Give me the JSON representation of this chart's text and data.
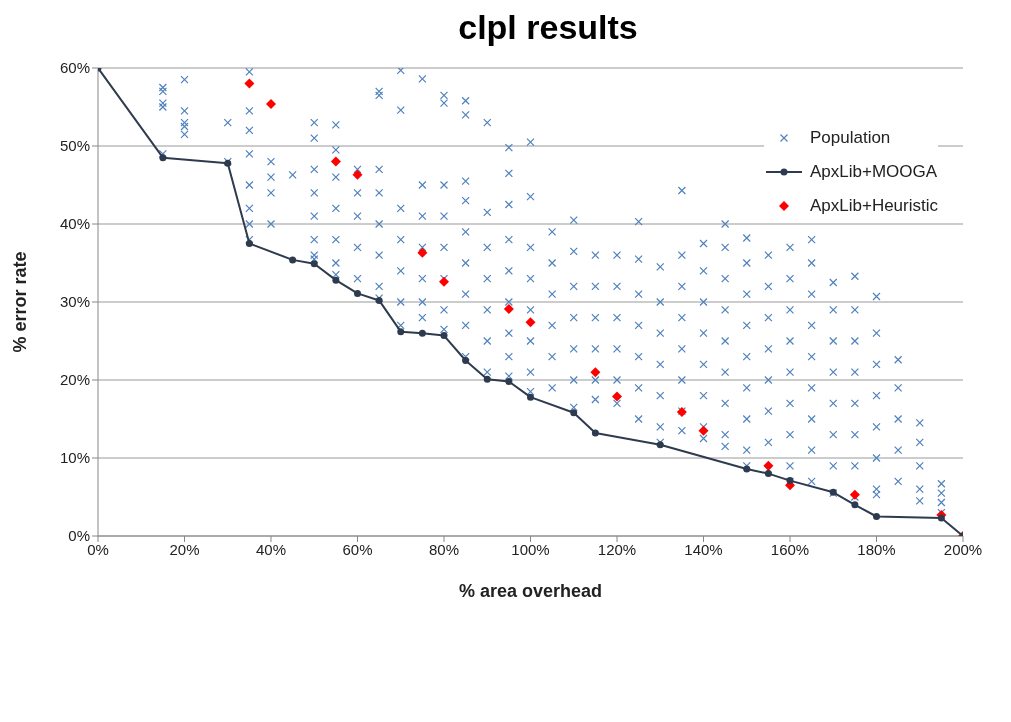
{
  "chart_data": {
    "type": "scatter",
    "title": "clpl results",
    "xlabel": "% area overhead",
    "ylabel": "% error rate",
    "xlim": [
      0,
      200
    ],
    "xticks": [
      {
        "value": 0,
        "label": "0%"
      },
      {
        "value": 20,
        "label": "20%"
      },
      {
        "value": 40,
        "label": "40%"
      },
      {
        "value": 60,
        "label": "60%"
      },
      {
        "value": 80,
        "label": "80%"
      },
      {
        "value": 100,
        "label": "100%"
      },
      {
        "value": 120,
        "label": "120%"
      },
      {
        "value": 140,
        "label": "140%"
      },
      {
        "value": 160,
        "label": "160%"
      },
      {
        "value": 180,
        "label": "180%"
      },
      {
        "value": 200,
        "label": "200%"
      }
    ],
    "ylim": [
      0,
      60
    ],
    "yticks": [
      {
        "value": 0,
        "label": "0%"
      },
      {
        "value": 10,
        "label": "10%"
      },
      {
        "value": 20,
        "label": "20%"
      },
      {
        "value": 30,
        "label": "30%"
      },
      {
        "value": 40,
        "label": "40%"
      },
      {
        "value": 50,
        "label": "50%"
      },
      {
        "value": 60,
        "label": "60%"
      }
    ],
    "grid": "y",
    "legend": "top right",
    "series": [
      {
        "name": "Population",
        "type": "scatter",
        "marker": "cross",
        "color": "#4f81bd",
        "x": [
          15,
          15,
          15,
          15,
          15,
          20,
          20,
          20,
          20,
          20,
          30,
          30,
          35,
          35,
          35,
          35,
          35,
          35,
          35,
          35,
          40,
          40,
          40,
          40,
          45,
          50,
          50,
          50,
          50,
          50,
          50,
          50,
          50,
          55,
          55,
          55,
          55,
          55,
          55,
          55,
          60,
          60,
          60,
          60,
          60,
          65,
          65,
          65,
          65,
          65,
          65,
          65,
          65,
          70,
          70,
          70,
          70,
          70,
          70,
          70,
          75,
          75,
          75,
          75,
          75,
          75,
          75,
          80,
          80,
          80,
          80,
          80,
          80,
          80,
          80,
          85,
          85,
          85,
          85,
          85,
          85,
          85,
          85,
          85,
          90,
          90,
          90,
          90,
          90,
          90,
          90,
          95,
          95,
          95,
          95,
          95,
          95,
          95,
          95,
          95,
          100,
          100,
          100,
          100,
          100,
          100,
          100,
          100,
          105,
          105,
          105,
          105,
          105,
          105,
          110,
          110,
          110,
          110,
          110,
          110,
          110,
          115,
          115,
          115,
          115,
          115,
          115,
          120,
          120,
          120,
          120,
          120,
          120,
          125,
          125,
          125,
          125,
          125,
          125,
          125,
          130,
          130,
          130,
          130,
          130,
          130,
          130,
          135,
          135,
          135,
          135,
          135,
          135,
          135,
          135,
          140,
          140,
          140,
          140,
          140,
          140,
          140,
          140,
          145,
          145,
          145,
          145,
          145,
          145,
          145,
          145,
          145,
          150,
          150,
          150,
          150,
          150,
          150,
          150,
          150,
          150,
          155,
          155,
          155,
          155,
          155,
          155,
          155,
          155,
          160,
          160,
          160,
          160,
          160,
          160,
          160,
          160,
          160,
          165,
          165,
          165,
          165,
          165,
          165,
          165,
          165,
          165,
          170,
          170,
          170,
          170,
          170,
          170,
          170,
          170,
          175,
          175,
          175,
          175,
          175,
          175,
          175,
          175,
          180,
          180,
          180,
          180,
          180,
          180,
          180,
          180,
          185,
          185,
          185,
          185,
          185,
          190,
          190,
          190,
          190,
          190,
          195,
          195,
          195,
          195
        ],
        "values": [
          57.5,
          57,
          55.5,
          55,
          49,
          58.5,
          54.5,
          53,
          52.5,
          51.5,
          53,
          48,
          59.5,
          54.5,
          52,
          49,
          45,
          42,
          40,
          38,
          48,
          46,
          44,
          40,
          46.3,
          53,
          51,
          47,
          44,
          41,
          38,
          36,
          35.5,
          52.7,
          49.5,
          46,
          42,
          38,
          35,
          33.5,
          47,
          44,
          41,
          37,
          33,
          57,
          56.5,
          47,
          44,
          40,
          36,
          32,
          30.5,
          59.7,
          54.6,
          42,
          38,
          34,
          30,
          27,
          58.6,
          45,
          41,
          37,
          33,
          30,
          28,
          56.5,
          55.5,
          45,
          41,
          37,
          33,
          29,
          26.5,
          55.8,
          54,
          45.5,
          43,
          39,
          35,
          31,
          27,
          23,
          53,
          41.5,
          37,
          33,
          29,
          25,
          21,
          49.8,
          46.5,
          42.5,
          38,
          34,
          30,
          26,
          23,
          20.5,
          50.5,
          43.5,
          37,
          33,
          29,
          25,
          21,
          18.5,
          39,
          35,
          31,
          27,
          23,
          19,
          40.5,
          36.5,
          32,
          28,
          24,
          20,
          16.5,
          36,
          32,
          28,
          24,
          20,
          17.5,
          36,
          32,
          28,
          24,
          20,
          17,
          40.3,
          35.5,
          31,
          27,
          23,
          19,
          15,
          34.5,
          30,
          26,
          22,
          18,
          14,
          12,
          44.3,
          36,
          32,
          28,
          24,
          20,
          16,
          13.5,
          37.5,
          34,
          30,
          26,
          22,
          18,
          14,
          12.5,
          40,
          37,
          33,
          29,
          25,
          21,
          17,
          13,
          11.5,
          38.2,
          35,
          31,
          27,
          23,
          19,
          15,
          11,
          9,
          36,
          32,
          28,
          24,
          20,
          16,
          12,
          8.5,
          37,
          33,
          29,
          25,
          21,
          17,
          13,
          9,
          7,
          38,
          35,
          31,
          27,
          23,
          19,
          15,
          11,
          7,
          32.5,
          29,
          25,
          21,
          17,
          13,
          9,
          5.5,
          33.3,
          29,
          25,
          21,
          17,
          13,
          9,
          5,
          30.7,
          26,
          22,
          18,
          14,
          10,
          6,
          5.3,
          22.6,
          19,
          15,
          11,
          7,
          14.5,
          12,
          9,
          6,
          4.5,
          6.7,
          5.5,
          4.3,
          3
        ]
      },
      {
        "name": "ApxLib+MOOGA",
        "type": "line",
        "marker": "circle",
        "line_style": "solid",
        "color": "#2e3b4e",
        "x": [
          0,
          15,
          30,
          35,
          45,
          50,
          55,
          60,
          65,
          70,
          75,
          80,
          85,
          90,
          95,
          100,
          110,
          115,
          130,
          150,
          155,
          160,
          170,
          175,
          180,
          195,
          200
        ],
        "values": [
          60,
          48.5,
          47.8,
          37.5,
          35.4,
          34.9,
          32.8,
          31.1,
          30.2,
          26.2,
          26.0,
          25.7,
          22.5,
          20.1,
          19.8,
          17.8,
          15.8,
          13.2,
          11.7,
          8.6,
          8.0,
          7.1,
          5.6,
          4.0,
          2.5,
          2.3,
          0
        ]
      },
      {
        "name": "ApxLib+Heuristic",
        "type": "scatter",
        "marker": "diamond",
        "color": "#ff0000",
        "x": [
          35,
          40,
          55,
          60,
          75,
          80,
          95,
          100,
          115,
          120,
          135,
          140,
          155,
          160,
          175,
          195,
          200
        ],
        "values": [
          58,
          55.4,
          48,
          46.3,
          36.3,
          32.6,
          29.1,
          27.4,
          21,
          17.9,
          15.9,
          13.5,
          9,
          6.5,
          5.3,
          2.7,
          0
        ]
      }
    ]
  }
}
